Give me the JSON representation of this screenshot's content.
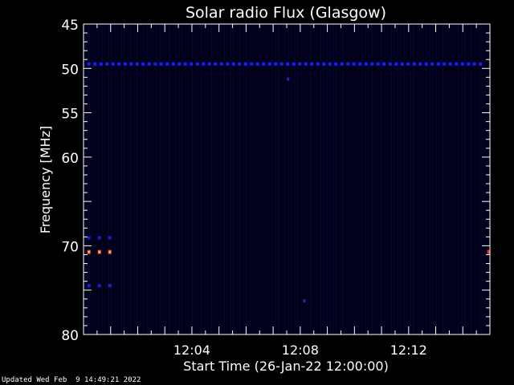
{
  "chart_data": {
    "type": "heatmap",
    "title": "Solar radio Flux (Glasgow)",
    "xlabel": "Start Time (26-Jan-22 12:00:00)",
    "ylabel": "Frequency [MHz]",
    "x_unit": "minutes after 12:00",
    "xlim": [
      0,
      15
    ],
    "ylim": [
      45,
      80
    ],
    "y_reversed": true,
    "x_ticks": [
      {
        "value": 4,
        "label": "12:04"
      },
      {
        "value": 8,
        "label": "12:08"
      },
      {
        "value": 12,
        "label": "12:12"
      }
    ],
    "y_ticks": [
      {
        "value": 45,
        "label": "45"
      },
      {
        "value": 50,
        "label": "50"
      },
      {
        "value": 55,
        "label": "55"
      },
      {
        "value": 60,
        "label": "60"
      },
      {
        "value": 70,
        "label": "70"
      },
      {
        "value": 80,
        "label": "80"
      }
    ],
    "background_color": "#00001a",
    "features": [
      {
        "name": "persistent band",
        "freq_mhz": 49.5,
        "t_start": 0.2,
        "t_end": 14.8,
        "intensity": "medium",
        "color": "#1a1aff"
      },
      {
        "name": "upper flank",
        "freq_mhz": 69.1,
        "t_start": 0.2,
        "t_end": 1.3,
        "intensity": "medium",
        "color": "#1e1ecc"
      },
      {
        "name": "bright emission",
        "freq_mhz": 70.7,
        "t_start": 0.2,
        "t_end": 1.3,
        "intensity": "high",
        "color": "#ff5522"
      },
      {
        "name": "lower flank",
        "freq_mhz": 74.5,
        "t_start": 0.2,
        "t_end": 1.3,
        "intensity": "medium",
        "color": "#1e1ecc"
      },
      {
        "name": "edge emission",
        "freq_mhz": 70.7,
        "t_start": 14.9,
        "t_end": 15.0,
        "intensity": "high",
        "color": "#ff3311"
      },
      {
        "name": "isolated spot",
        "freq_mhz": 51.2,
        "t_start": 7.5,
        "t_end": 7.6,
        "intensity": "low",
        "color": "#2222aa"
      },
      {
        "name": "isolated spot",
        "freq_mhz": 76.2,
        "t_start": 8.1,
        "t_end": 8.2,
        "intensity": "low",
        "color": "#2222aa"
      }
    ]
  },
  "footer": {
    "updated": "Updated Wed Feb  9 14:49:21 2022"
  }
}
